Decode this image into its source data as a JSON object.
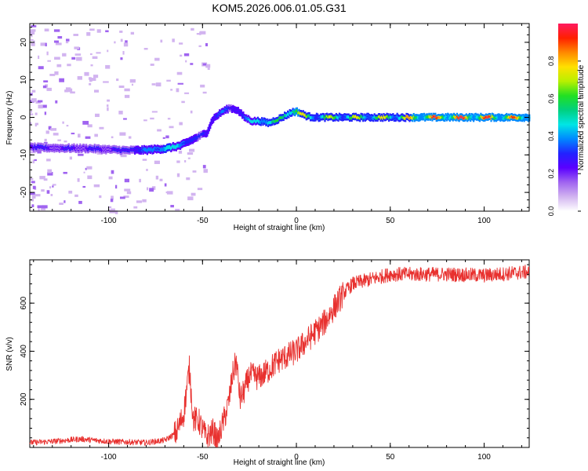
{
  "title": "KOM5.2026.006.01.05.G31",
  "colors": {
    "snr_line": "#e8312f",
    "axis": "#000000"
  },
  "chart_data": [
    {
      "type": "heatmap",
      "xlabel": "Height of straight line (km)",
      "ylabel": "Frequency (Hz)",
      "xlim": [
        -142,
        124
      ],
      "ylim": [
        -25,
        25
      ],
      "xticks": [
        -100,
        -50,
        0,
        50,
        100
      ],
      "yticks": [
        -20,
        -10,
        0,
        10,
        20
      ],
      "colorbar": {
        "label": "Normalized spectral amplitude",
        "range": [
          0,
          1
        ],
        "ticks": [
          "0.0",
          "0.2",
          "0.4",
          "0.6",
          "0.8"
        ],
        "tick_values": [
          0,
          0.2,
          0.4,
          0.6,
          0.8
        ],
        "colormap": [
          "#ffffff",
          "#d2b4f0",
          "#a064f0",
          "#5a00ff",
          "#2222ff",
          "#0088ff",
          "#00e5e5",
          "#00d080",
          "#22e022",
          "#b8f000",
          "#ffe000",
          "#ff8800",
          "#ff2000",
          "#ff1a60"
        ]
      },
      "ridge": {
        "x": [
          -142,
          -125,
          -110,
          -100,
          -90,
          -80,
          -70,
          -62,
          -56,
          -52,
          -48,
          -45,
          -40,
          -36,
          -32,
          -28,
          -24,
          -20,
          -15,
          -10,
          -5,
          -2,
          0,
          3,
          6,
          10,
          20,
          40,
          60,
          80,
          100,
          124
        ],
        "freq": [
          -8,
          -8.2,
          -8.3,
          -8.6,
          -8.8,
          -8.7,
          -8.3,
          -7.5,
          -6,
          -5,
          -4,
          -0.5,
          1.5,
          2.5,
          2,
          0,
          -1,
          -1,
          -1.5,
          -0.5,
          0.8,
          1.5,
          1.5,
          0.8,
          0.2,
          0,
          0,
          0,
          0,
          0,
          0,
          0
        ],
        "amp": [
          0.22,
          0.18,
          0.2,
          0.2,
          0.22,
          0.35,
          0.5,
          0.45,
          0.3,
          0.25,
          0.28,
          0.3,
          0.35,
          0.25,
          0.3,
          0.35,
          0.45,
          0.5,
          0.55,
          0.6,
          0.62,
          0.7,
          0.75,
          0.65,
          0.55,
          0.58,
          0.6,
          0.62,
          0.7,
          0.85,
          0.8,
          0.72
        ]
      }
    },
    {
      "type": "line",
      "xlabel": "Height of straight line (km)",
      "ylabel": "SNR (v/v)",
      "xlim": [
        -142,
        124
      ],
      "ylim": [
        0,
        780
      ],
      "xticks": [
        -100,
        -50,
        0,
        50,
        100
      ],
      "yticks": [
        200,
        400,
        600
      ],
      "series": [
        {
          "name": "SNR",
          "x": [
            -142,
            -130,
            -115,
            -100,
            -80,
            -70,
            -64,
            -60,
            -58,
            -57,
            -55,
            -52,
            -48,
            -44,
            -42,
            -40,
            -38,
            -36,
            -34,
            -32,
            -30,
            -28,
            -25,
            -20,
            -15,
            -10,
            -5,
            0,
            5,
            10,
            15,
            20,
            25,
            30,
            35,
            40,
            50,
            60,
            80,
            100,
            124
          ],
          "y": [
            20,
            25,
            35,
            25,
            20,
            30,
            60,
            140,
            270,
            330,
            120,
            110,
            40,
            70,
            20,
            80,
            130,
            190,
            300,
            360,
            200,
            230,
            300,
            290,
            320,
            360,
            380,
            400,
            440,
            480,
            520,
            580,
            640,
            680,
            690,
            700,
            720,
            720,
            720,
            715,
            730
          ]
        }
      ]
    }
  ]
}
